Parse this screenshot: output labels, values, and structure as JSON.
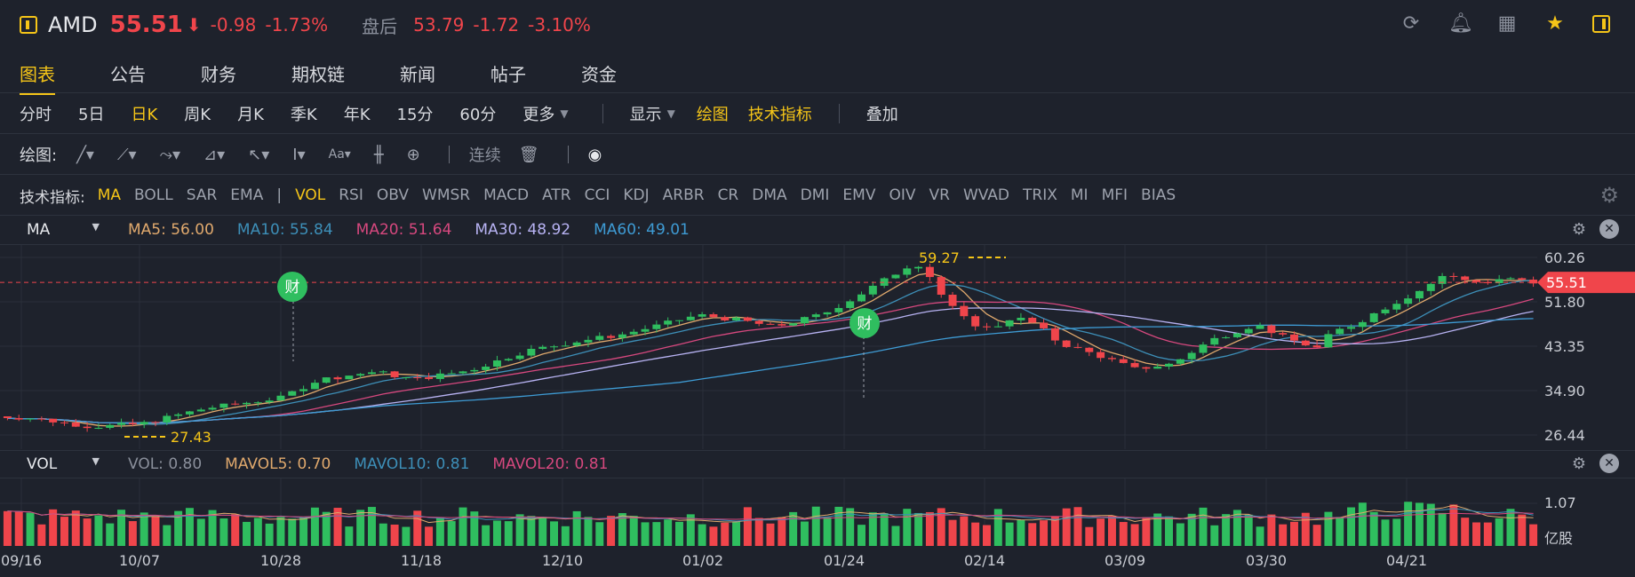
{
  "header": {
    "ticker": "AMD",
    "price": "55.51",
    "change": "-0.98",
    "change_pct": "-1.73%",
    "after_hours_label": "盘后",
    "ah_price": "53.79",
    "ah_change": "-1.72",
    "ah_change_pct": "-3.10%",
    "icons": [
      "refresh-icon",
      "bell-icon",
      "grid-icon",
      "star-icon",
      "panel-icon"
    ]
  },
  "tabs": [
    "图表",
    "公告",
    "财务",
    "期权链",
    "新闻",
    "帖子",
    "资金"
  ],
  "active_tab": "图表",
  "periods": {
    "items": [
      "分时",
      "5日",
      "日K",
      "周K",
      "月K",
      "季K",
      "年K",
      "15分",
      "60分",
      "更多"
    ],
    "active": "日K",
    "display": "显示",
    "draw": "绘图",
    "tech": "技术指标",
    "overlay": "叠加"
  },
  "drawing": {
    "label": "绘图:",
    "continuous": "连续",
    "text_tool": "Aa"
  },
  "indicators": {
    "label": "技术指标:",
    "main": [
      "MA",
      "BOLL",
      "SAR",
      "EMA"
    ],
    "sub": [
      "VOL",
      "RSI",
      "OBV",
      "WMSR",
      "MACD",
      "ATR",
      "CCI",
      "KDJ",
      "ARBR",
      "CR",
      "DMA",
      "DMI",
      "EMV",
      "OIV",
      "VR",
      "WVAD",
      "TRIX",
      "MI",
      "MFI",
      "BIAS"
    ],
    "divider": "|"
  },
  "ma_legend": {
    "selector": "MA",
    "items": [
      {
        "text": "MA5: 56.00",
        "color": "#e0a96d"
      },
      {
        "text": "MA10: 55.84",
        "color": "#3d8fb8"
      },
      {
        "text": "MA20: 51.64",
        "color": "#d6487e"
      },
      {
        "text": "MA30: 48.92",
        "color": "#b7b2f2"
      },
      {
        "text": "MA60: 49.01",
        "color": "#3e9bd4"
      }
    ]
  },
  "vol_legend": {
    "selector": "VOL",
    "items": [
      {
        "text": "VOL: 0.80",
        "color": "#8a8f9b"
      },
      {
        "text": "MAVOL5: 0.70",
        "color": "#e0a96d"
      },
      {
        "text": "MAVOL10: 0.81",
        "color": "#3d8fb8"
      },
      {
        "text": "MAVOL20: 0.81",
        "color": "#d6487e"
      }
    ]
  },
  "chart_data": {
    "type": "candlestick",
    "y_ticks": [
      "60.26",
      "51.80",
      "43.35",
      "34.90",
      "26.44"
    ],
    "y_range": [
      26.44,
      60.26
    ],
    "current_price": "55.51",
    "high_marker": "59.27",
    "low_marker": "27.43",
    "earnings_badge": "财",
    "x_labels": [
      "09/16",
      "10/07",
      "10/28",
      "11/18",
      "12/10",
      "01/02",
      "01/24",
      "02/14",
      "03/09",
      "03/30",
      "04/21"
    ],
    "vol_tick": "1.07",
    "vol_unit": "亿股",
    "up_color": "#2fbe5f",
    "down_color": "#f0454b"
  }
}
